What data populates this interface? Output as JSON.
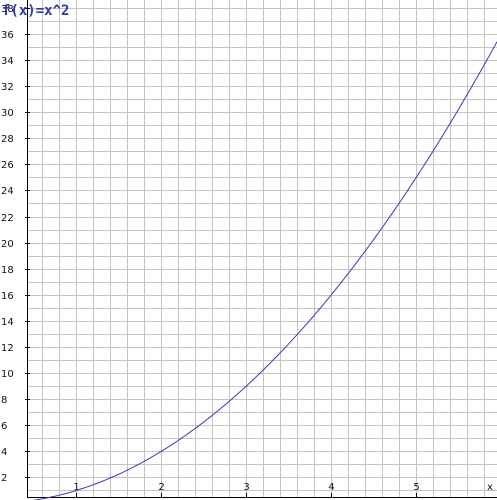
{
  "chart_data": {
    "type": "line",
    "title": "f(x)=x^2",
    "xlabel": "x",
    "ylabel": "",
    "xlim": [
      0.42,
      5.95
    ],
    "ylim": [
      0.5,
      38.6
    ],
    "x_ticks": [
      1,
      2,
      3,
      4,
      5
    ],
    "y_ticks": [
      2,
      4,
      6,
      8,
      10,
      12,
      14,
      16,
      18,
      20,
      22,
      24,
      26,
      28,
      30,
      32,
      34,
      36,
      38
    ],
    "grid": true,
    "series": [
      {
        "function": "x^2",
        "x": [
          0.5,
          1,
          2,
          3,
          4,
          5,
          5.95
        ],
        "y": [
          0.25,
          1,
          4,
          9,
          16,
          25,
          35.4
        ]
      }
    ],
    "colors": {
      "curve": "#3a3ab8",
      "grid": "#c4c4c4",
      "axis": "#000000",
      "title": "#2b3aa8"
    }
  }
}
